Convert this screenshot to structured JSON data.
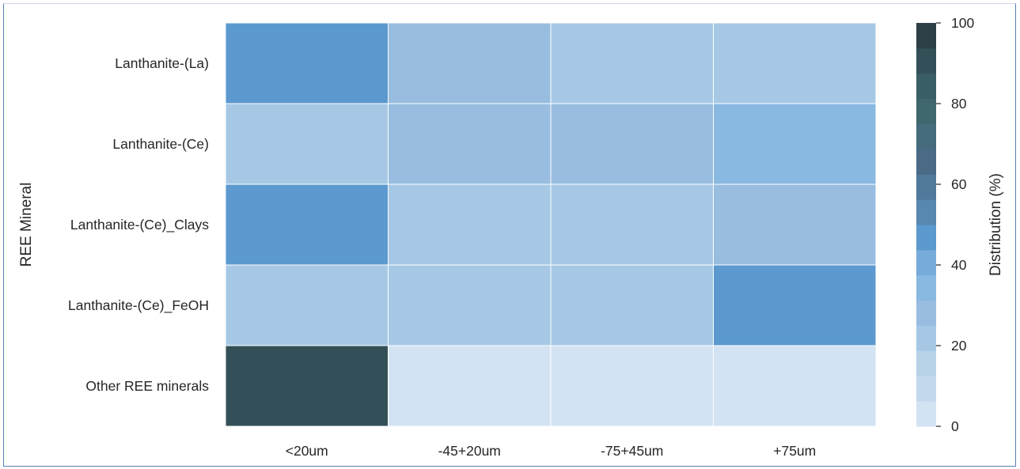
{
  "chart_data": {
    "type": "heatmap",
    "title": "",
    "xlabel": "",
    "ylabel": "REE Mineral",
    "x_categories": [
      "<20um",
      "-45+20um",
      "-75+45um",
      "+75um"
    ],
    "y_categories": [
      "Lanthanite-(La)",
      "Lanthanite-(Ce)",
      "Lanthanite-(Ce)_Clays",
      "Lanthanite-(Ce)_FeOH",
      "Other REE minerals"
    ],
    "values": [
      [
        44,
        28,
        19,
        19
      ],
      [
        19,
        25,
        29,
        34
      ],
      [
        44,
        19,
        19,
        25
      ],
      [
        19,
        19,
        19,
        44
      ],
      [
        89,
        3,
        3,
        3
      ]
    ],
    "colorbar": {
      "label": "Distribution (%)",
      "min": 0,
      "max": 100,
      "ticks": [
        "0",
        "20",
        "40",
        "60",
        "80",
        "100"
      ],
      "colors": [
        "#d3e3f3",
        "#c4d8ed",
        "#b8d2e8",
        "#a6c8e5",
        "#98bde0",
        "#89b8e0",
        "#76abda",
        "#5b99ce",
        "#5887b0",
        "#50799b",
        "#4a6a86",
        "#456b7c",
        "#40666e",
        "#3a5e66",
        "#335058",
        "#2d3f47"
      ]
    }
  }
}
